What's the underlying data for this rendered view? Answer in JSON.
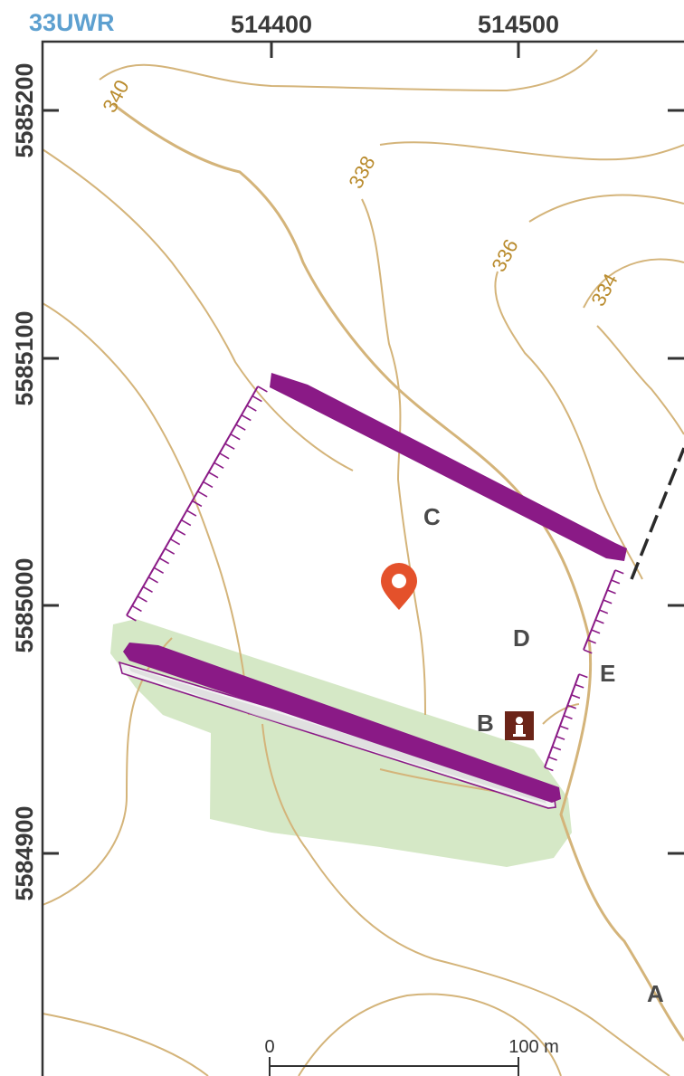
{
  "grid_zone": "33UWR",
  "easting_labels": [
    "514400",
    "514500"
  ],
  "northing_labels": [
    "5585200",
    "5585100",
    "5585000",
    "5584900"
  ],
  "contour_labels": [
    "340",
    "338",
    "336",
    "334"
  ],
  "site_letters": [
    "C",
    "D",
    "B",
    "E",
    "A"
  ],
  "scale_bar": {
    "start": "0",
    "end": "100 m"
  },
  "icons": {
    "location": "map-pin-icon",
    "info": "info-icon"
  },
  "colors": {
    "contour": "#c9a96a",
    "contour_index": "#c8a463",
    "rampart": "#8a1a86",
    "ditch": "#8a1a86",
    "vegetation": "#d5e8c6",
    "pin": "#e4512b",
    "info_box": "#6b2418",
    "grid_zone": "#5da0d0"
  }
}
